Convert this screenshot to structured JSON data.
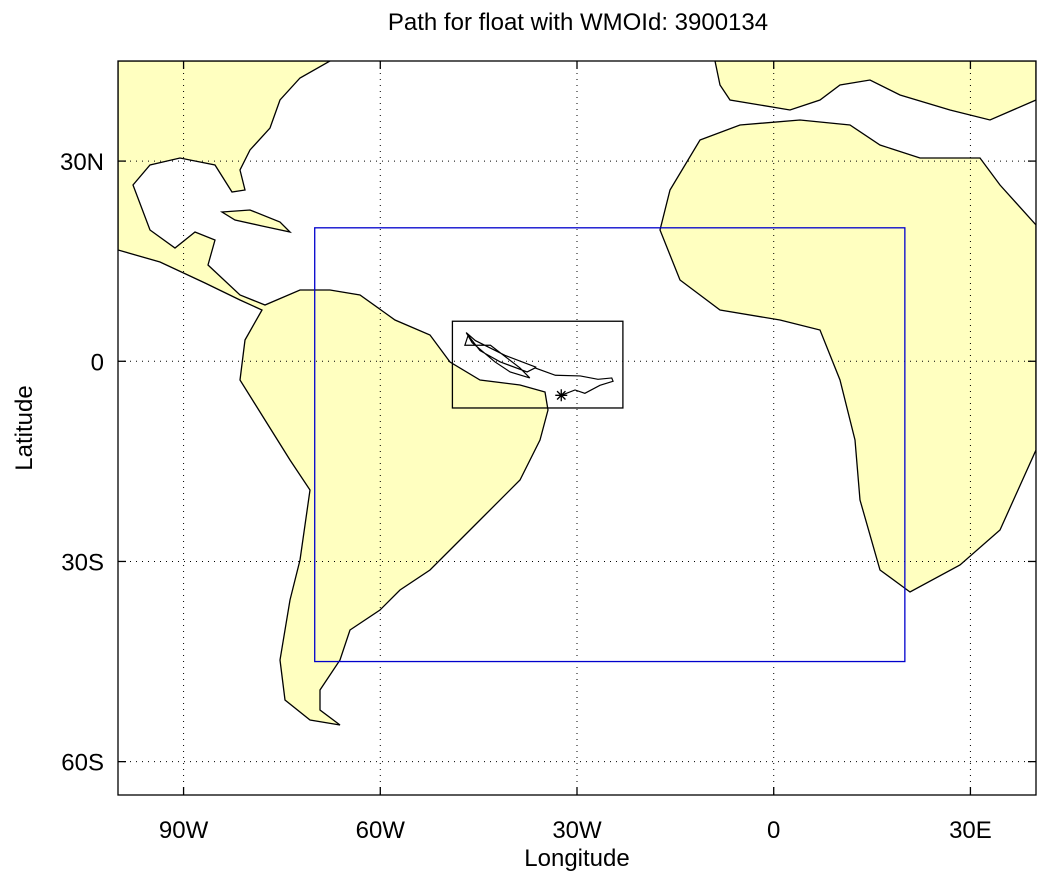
{
  "chart_data": {
    "type": "map",
    "title": "Path for float with WMOId: 3900134",
    "xlabel": "Longitude",
    "ylabel": "Latitude",
    "xlim": [
      -100,
      40
    ],
    "ylim": [
      -65,
      45
    ],
    "xticks": [
      {
        "value": -90,
        "label": "90W"
      },
      {
        "value": -60,
        "label": "60W"
      },
      {
        "value": -30,
        "label": "30W"
      },
      0,
      {
        "value": 30,
        "label": "30E"
      }
    ],
    "yticks": [
      {
        "value": -60,
        "label": "60S"
      },
      {
        "value": -30,
        "label": "30S"
      },
      0,
      {
        "value": 30,
        "label": "30N"
      }
    ],
    "grid": true,
    "regions": [
      {
        "color": "#0000cc",
        "xlim": [
          -70,
          20
        ],
        "ylim": [
          -45,
          20
        ]
      },
      {
        "color": "#000000",
        "xlim": [
          -49,
          -23
        ],
        "ylim": [
          -7,
          6
        ]
      }
    ],
    "series": [
      {
        "color": "#000000",
        "x": [
          -32.4,
          -30.3,
          -28.8,
          -26.5,
          -24.5,
          -24.7,
          -26.8,
          -29.5,
          -33.3,
          -36.4,
          -37.6,
          -41.7,
          -44.8,
          -46.6,
          -47.1,
          -43.2,
          -38.7,
          -37.2,
          -40.2,
          -42.5,
          -46.0,
          -46.9,
          -45.5,
          -41.0,
          -36.2
        ],
        "y": [
          -5.1,
          -4.3,
          -4.8,
          -3.6,
          -3.0,
          -2.5,
          -2.7,
          -2.2,
          -2.1,
          -1.0,
          -1.6,
          -0.1,
          1.6,
          3.9,
          2.4,
          2.4,
          -1.0,
          -2.5,
          -1.6,
          -0.1,
          2.8,
          4.3,
          3.1,
          0.9,
          -0.9
        ]
      }
    ]
  }
}
